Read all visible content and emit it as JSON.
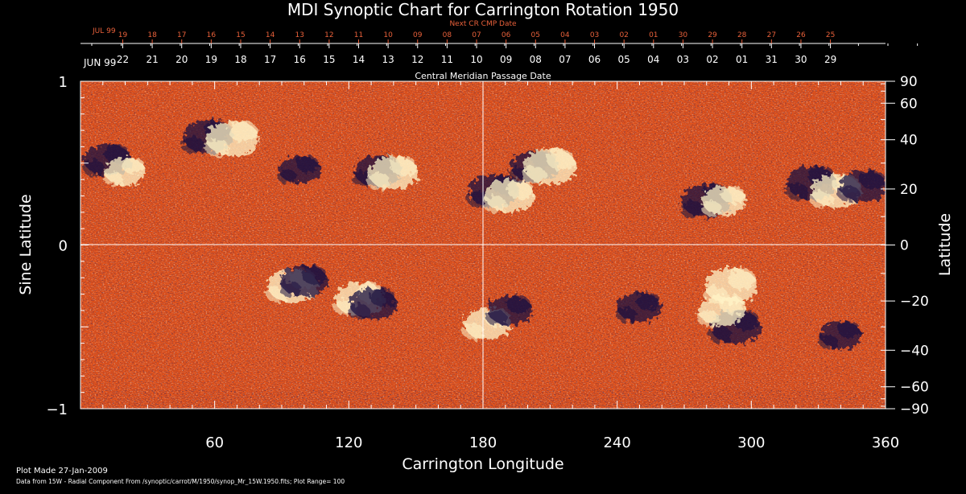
{
  "colors": {
    "background": "#000000",
    "text": "#ffffff",
    "next_cr_text": "#e8603a",
    "field_base": "#e0511a",
    "positive": "#fff4c8",
    "negative": "#1a1040"
  },
  "chart_data": {
    "type": "heatmap",
    "title": "MDI Synoptic Chart for Carrington Rotation 1950",
    "xlabel": "Carrington Longitude",
    "ylabel_left": "Sine Latitude",
    "ylabel_right": "Latitude",
    "top_axis_label": "Central Meridian Passage Date",
    "next_cr_label": "Next CR CMP Date",
    "xlim": [
      0,
      360
    ],
    "ylim": [
      -1,
      1
    ],
    "x_ticks": [
      60,
      120,
      180,
      240,
      300,
      360
    ],
    "y_ticks_left": [
      "1",
      "0",
      "−1"
    ],
    "y_ticks_right": [
      "90",
      "60",
      "40",
      "20",
      "0",
      "−20",
      "−40",
      "−60",
      "−90"
    ],
    "y_ticks_right_values": [
      90,
      60,
      40,
      20,
      0,
      -20,
      -40,
      -60,
      -90
    ],
    "month_label_next": "JUL 99",
    "month_label_main": "JUN 99",
    "next_cr_dates": [
      "19",
      "18",
      "17",
      "16",
      "15",
      "14",
      "13",
      "12",
      "11",
      "10",
      "09",
      "08",
      "07",
      "06",
      "05",
      "04",
      "03",
      "02",
      "01",
      "30",
      "29",
      "28",
      "27",
      "26",
      "25"
    ],
    "cmp_dates": [
      "22",
      "21",
      "20",
      "19",
      "18",
      "17",
      "16",
      "15",
      "14",
      "13",
      "12",
      "11",
      "10",
      "09",
      "08",
      "07",
      "06",
      "05",
      "04",
      "03",
      "02",
      "01",
      "31",
      "30",
      "29"
    ],
    "footer_line1": "Plot Made 27-Jan-2009",
    "footer_line2": "Data from 15W - Radial Component From /synoptic/carrot/M/1950/synop_Mr_15W.1950.fits; Plot Range= 100",
    "plot_range_gauss": 100,
    "regions": [
      {
        "lon": 12,
        "lat": 0.52,
        "polarity": "negative",
        "strength": 0.8
      },
      {
        "lon": 20,
        "lat": 0.45,
        "polarity": "positive",
        "strength": 0.6
      },
      {
        "lon": 57,
        "lat": 0.66,
        "polarity": "negative",
        "strength": 0.9
      },
      {
        "lon": 68,
        "lat": 0.65,
        "polarity": "positive",
        "strength": 1.0
      },
      {
        "lon": 98,
        "lat": 0.46,
        "polarity": "negative",
        "strength": 0.6
      },
      {
        "lon": 133,
        "lat": 0.45,
        "polarity": "negative",
        "strength": 0.8
      },
      {
        "lon": 140,
        "lat": 0.44,
        "polarity": "positive",
        "strength": 0.9
      },
      {
        "lon": 185,
        "lat": 0.33,
        "polarity": "negative",
        "strength": 0.9
      },
      {
        "lon": 192,
        "lat": 0.3,
        "polarity": "positive",
        "strength": 0.9
      },
      {
        "lon": 203,
        "lat": 0.48,
        "polarity": "negative",
        "strength": 0.8
      },
      {
        "lon": 210,
        "lat": 0.48,
        "polarity": "positive",
        "strength": 1.0
      },
      {
        "lon": 280,
        "lat": 0.27,
        "polarity": "negative",
        "strength": 0.9
      },
      {
        "lon": 288,
        "lat": 0.27,
        "polarity": "positive",
        "strength": 0.7
      },
      {
        "lon": 327,
        "lat": 0.38,
        "polarity": "negative",
        "strength": 0.9
      },
      {
        "lon": 338,
        "lat": 0.33,
        "polarity": "positive",
        "strength": 0.9
      },
      {
        "lon": 350,
        "lat": 0.36,
        "polarity": "negative",
        "strength": 0.8
      },
      {
        "lon": 95,
        "lat": -0.25,
        "polarity": "positive",
        "strength": 0.9
      },
      {
        "lon": 100,
        "lat": -0.22,
        "polarity": "negative",
        "strength": 0.8
      },
      {
        "lon": 125,
        "lat": -0.33,
        "polarity": "positive",
        "strength": 0.9
      },
      {
        "lon": 131,
        "lat": -0.36,
        "polarity": "negative",
        "strength": 0.8
      },
      {
        "lon": 182,
        "lat": -0.48,
        "polarity": "positive",
        "strength": 0.8
      },
      {
        "lon": 192,
        "lat": -0.4,
        "polarity": "negative",
        "strength": 0.7
      },
      {
        "lon": 250,
        "lat": -0.38,
        "polarity": "negative",
        "strength": 0.7
      },
      {
        "lon": 291,
        "lat": -0.25,
        "polarity": "positive",
        "strength": 1.0
      },
      {
        "lon": 293,
        "lat": -0.5,
        "polarity": "negative",
        "strength": 0.9
      },
      {
        "lon": 287,
        "lat": -0.4,
        "polarity": "positive",
        "strength": 0.8
      },
      {
        "lon": 340,
        "lat": -0.55,
        "polarity": "negative",
        "strength": 0.6
      }
    ]
  }
}
